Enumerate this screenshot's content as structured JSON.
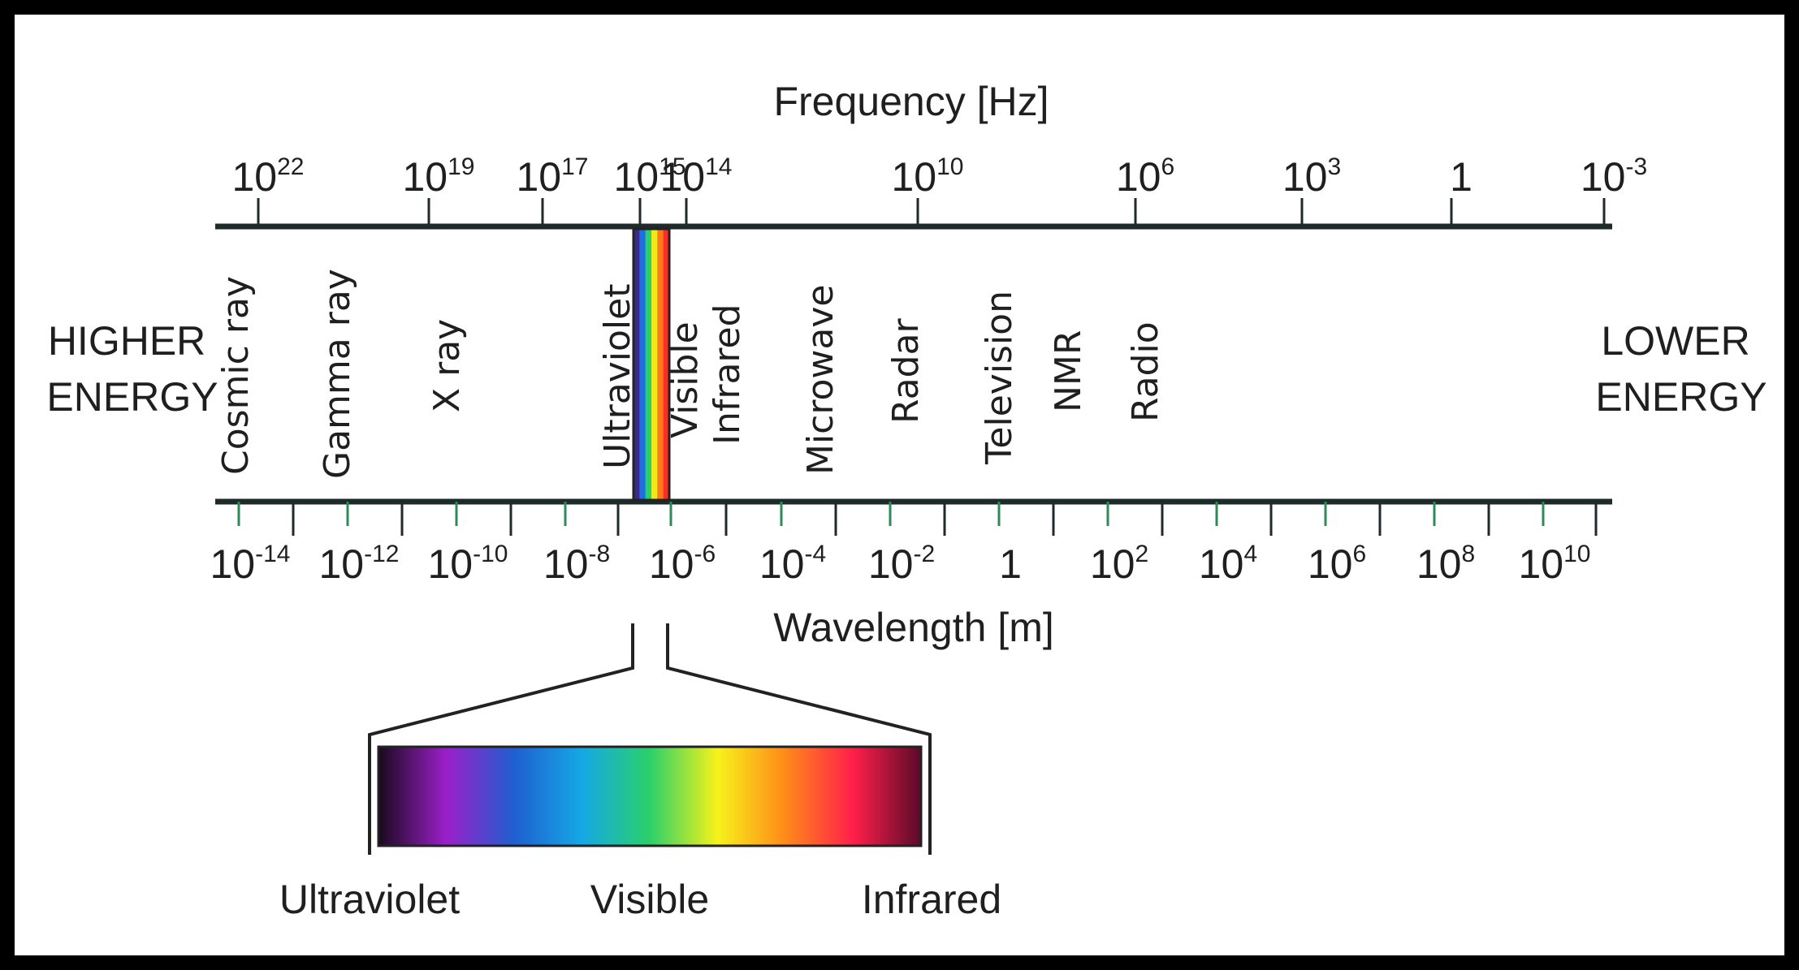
{
  "frequency_axis": {
    "title": "Frequency [Hz]",
    "ticks": [
      {
        "base": "10",
        "exp": "22"
      },
      {
        "base": "10",
        "exp": "19"
      },
      {
        "base": "10",
        "exp": "17"
      },
      {
        "base": "10",
        "exp": "15"
      },
      {
        "base": "10",
        "exp": "14"
      },
      {
        "base": "10",
        "exp": "10"
      },
      {
        "base": "10",
        "exp": "6"
      },
      {
        "base": "10",
        "exp": "3"
      },
      {
        "base": "1",
        "exp": ""
      },
      {
        "base": "10",
        "exp": "-3"
      }
    ]
  },
  "wavelength_axis": {
    "title": "Wavelength [m]",
    "ticks": [
      {
        "base": "10",
        "exp": "-14"
      },
      {
        "base": "10",
        "exp": "-12"
      },
      {
        "base": "10",
        "exp": "-10"
      },
      {
        "base": "10",
        "exp": "-8"
      },
      {
        "base": "10",
        "exp": "-6"
      },
      {
        "base": "10",
        "exp": "-4"
      },
      {
        "base": "10",
        "exp": "-2"
      },
      {
        "base": "1",
        "exp": ""
      },
      {
        "base": "10",
        "exp": "2"
      },
      {
        "base": "10",
        "exp": "4"
      },
      {
        "base": "10",
        "exp": "6"
      },
      {
        "base": "10",
        "exp": "8"
      },
      {
        "base": "10",
        "exp": "10"
      }
    ]
  },
  "energy": {
    "higher": [
      "HIGHER",
      "ENERGY"
    ],
    "lower": [
      "LOWER",
      "ENERGY"
    ]
  },
  "bands": [
    "Cosmic ray",
    "Gamma ray",
    "X ray",
    "Ultraviolet",
    "Visible",
    "Infrared",
    "Microwave",
    "Radar",
    "Television",
    "NMR",
    "Radio"
  ],
  "visible_spectrum": {
    "labels": {
      "left": "Ultraviolet",
      "center": "Visible",
      "right": "Infrared"
    },
    "colors": [
      "#1a0a1e",
      "#9b1fc9",
      "#1f5fd0",
      "#15a8e6",
      "#2bd06a",
      "#f7f21a",
      "#ff8a1a",
      "#ff1f4a",
      "#5a0a2a"
    ],
    "strip_colors": [
      "#3a2a8a",
      "#1f6fe0",
      "#2bd06a",
      "#f0e81a",
      "#ff7a1a",
      "#ff2a2a"
    ]
  }
}
